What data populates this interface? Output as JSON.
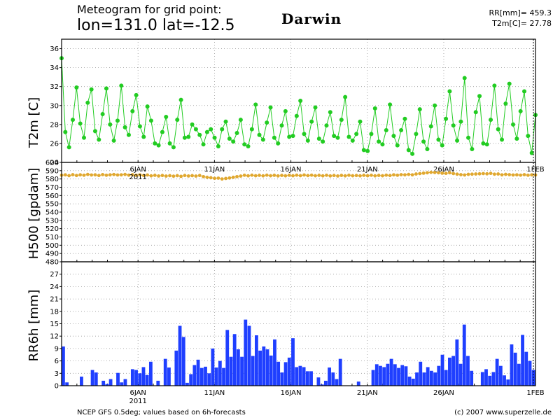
{
  "header": {
    "title_line1": "Meteogram for grid point:",
    "title_line2": "lon=131.0 lat=-12.5",
    "location": "Darwin",
    "rr_total": "RR[mm]= 459.3",
    "t2m_mean": "T2m[C]= 27.78"
  },
  "footer": {
    "source": "NCEP GFS 0.5deg; values based on 6h-forecasts",
    "credit": "(c) 2007 www.superzelle.de"
  },
  "colors": {
    "t2m": "#22cc22",
    "h500": "#e0a830",
    "rr6h": "#1f3fff",
    "grid": "#999999"
  },
  "chart_data": [
    {
      "type": "line",
      "ylabel": "T2m [C]",
      "x_axis": {
        "start": "2011-01-01 00:00",
        "end": "2011-02-01 00:00",
        "step": "6h",
        "tick_labels": [
          "6JAN",
          "11JAN",
          "16JAN",
          "21JAN",
          "26JAN",
          "1FEB"
        ],
        "tick_dates": [
          "2011-01-06",
          "2011-01-11",
          "2011-01-16",
          "2011-01-21",
          "2011-01-26",
          "2011-02-01"
        ]
      },
      "ylim": [
        24,
        37
      ],
      "yticks": [
        24,
        26,
        28,
        30,
        32,
        34,
        36
      ],
      "grid": true,
      "series": [
        {
          "values": [
            35.0,
            27.2,
            25.6,
            28.5,
            31.9,
            28.1,
            26.6,
            30.3,
            31.7,
            27.3,
            26.4,
            29.1,
            31.8,
            28.0,
            26.3,
            28.4,
            32.1,
            27.7,
            26.9,
            29.4,
            31.1,
            27.8,
            26.7,
            29.9,
            28.4,
            26.0,
            25.8,
            27.2,
            28.8,
            26.0,
            25.6,
            28.5,
            30.6,
            26.6,
            26.7,
            28.0,
            27.5,
            26.9,
            25.9,
            27.2,
            27.5,
            26.6,
            25.7,
            27.5,
            28.3,
            26.5,
            26.2,
            27.1,
            28.5,
            25.9,
            25.7,
            27.5,
            30.1,
            26.9,
            26.4,
            28.2,
            29.8,
            26.6,
            26.0,
            27.9,
            29.4,
            26.7,
            26.8,
            28.9,
            30.5,
            27.0,
            26.3,
            28.3,
            29.8,
            26.5,
            26.2,
            27.9,
            29.3,
            26.8,
            26.6,
            28.5,
            30.9,
            26.7,
            26.3,
            27.0,
            28.3,
            25.3,
            25.2,
            27.0,
            29.7,
            26.2,
            25.9,
            27.4,
            30.1,
            26.8,
            25.8,
            27.4,
            28.6,
            25.3,
            24.9,
            27.0,
            29.6,
            26.2,
            25.4,
            27.8,
            30.0,
            26.4,
            25.8,
            28.6,
            31.5,
            27.9,
            26.3,
            28.3,
            32.9,
            26.6,
            25.4,
            29.3,
            31.0,
            26.0,
            25.9,
            28.5,
            32.1,
            27.5,
            26.4,
            30.2,
            32.3,
            28.0,
            26.5,
            29.4,
            31.5,
            26.8,
            25.0,
            29.0
          ]
        }
      ]
    },
    {
      "type": "line",
      "ylabel": "H500 [gpdam]",
      "x_axis": {
        "start": "2011-01-01 00:00",
        "end": "2011-02-01 00:00",
        "step": "6h",
        "tick_labels": [
          "6JAN",
          "11JAN",
          "16JAN",
          "21JAN",
          "26JAN",
          "1FEB"
        ],
        "tick_dates": [
          "2011-01-06",
          "2011-01-11",
          "2011-01-16",
          "2011-01-21",
          "2011-01-26",
          "2011-02-01"
        ],
        "year_label": "2011"
      },
      "ylim": [
        480,
        600
      ],
      "yticks": [
        480,
        490,
        500,
        510,
        520,
        530,
        540,
        550,
        560,
        570,
        580,
        590,
        600
      ],
      "grid": true,
      "series": [
        {
          "values": [
            584.5,
            585.0,
            584.0,
            585.2,
            584.2,
            585.0,
            584.5,
            585.5,
            584.8,
            585.0,
            584.2,
            585.3,
            584.5,
            585.0,
            585.4,
            584.8,
            585.0,
            585.5,
            584.6,
            585.2,
            584.4,
            585.0,
            584.2,
            584.8,
            583.8,
            584.4,
            583.6,
            584.2,
            583.5,
            584.0,
            583.4,
            584.0,
            583.2,
            584.2,
            583.6,
            584.0,
            583.5,
            584.2,
            582.8,
            582.0,
            581.5,
            580.8,
            581.0,
            580.0,
            580.6,
            581.2,
            582.0,
            582.8,
            583.5,
            584.5,
            583.8,
            584.6,
            583.9,
            584.4,
            583.8,
            584.6,
            583.9,
            584.4,
            583.7,
            584.3,
            583.8,
            584.5,
            583.9,
            584.6,
            584.0,
            584.8,
            584.1,
            584.6,
            583.9,
            584.4,
            583.8,
            584.5,
            583.7,
            584.2,
            583.6,
            584.3,
            583.8,
            584.5,
            583.9,
            584.2,
            583.8,
            584.4,
            583.9,
            584.5,
            583.8,
            584.3,
            583.9,
            584.6,
            584.2,
            585.0,
            584.5,
            585.2,
            585.0,
            585.5,
            585.0,
            586.0,
            586.5,
            587.0,
            587.5,
            588.0,
            587.8,
            587.5,
            587.0,
            586.8,
            587.5,
            586.5,
            585.8,
            585.2,
            584.8,
            585.6,
            585.8,
            586.0,
            586.2,
            586.5,
            586.2,
            586.8,
            585.8,
            586.0,
            585.0,
            585.6,
            585.2,
            584.8,
            585.0,
            584.6,
            585.2,
            584.5,
            585.0,
            584.8
          ]
        }
      ]
    },
    {
      "type": "bar",
      "ylabel": "RR6h [mm]",
      "x_axis": {
        "start": "2011-01-01 00:00",
        "end": "2011-02-01 00:00",
        "step": "6h",
        "tick_labels": [
          "6JAN",
          "11JAN",
          "16JAN",
          "21JAN",
          "26JAN",
          "1FEB"
        ],
        "tick_dates": [
          "2011-01-06",
          "2011-01-11",
          "2011-01-16",
          "2011-01-21",
          "2011-01-26",
          "2011-02-01"
        ],
        "year_label": "2011"
      },
      "ylim": [
        0,
        30
      ],
      "yticks": [
        0,
        3,
        6,
        9,
        12,
        15,
        18,
        21,
        24,
        27
      ],
      "grid": true,
      "series": [
        {
          "values": [
            9.5,
            0.8,
            0,
            0,
            0,
            2.2,
            0,
            0,
            3.8,
            3.2,
            0,
            1.2,
            0.4,
            1.6,
            0,
            3.1,
            0.8,
            1.6,
            0,
            4.0,
            3.8,
            3.0,
            4.5,
            2.6,
            5.8,
            0,
            1.2,
            0,
            6.5,
            4.4,
            0,
            8.5,
            14.5,
            11.8,
            0.7,
            2.8,
            5.0,
            6.3,
            4.3,
            4.6,
            3.0,
            9.0,
            4.4,
            6.0,
            4.3,
            13.5,
            7.0,
            12.5,
            8.8,
            7.0,
            16.0,
            14.5,
            7.2,
            12.2,
            8.5,
            9.5,
            8.8,
            7.3,
            11.2,
            5.8,
            3.2,
            5.7,
            6.8,
            11.5,
            4.5,
            4.8,
            4.5,
            3.5,
            3.5,
            0,
            2.0,
            0.3,
            1.2,
            4.4,
            3.2,
            1.6,
            6.5,
            0,
            0,
            0,
            0,
            1.0,
            0,
            0,
            0,
            3.8,
            5.2,
            4.8,
            4.5,
            5.3,
            6.5,
            5.2,
            4.3,
            5.0,
            4.7,
            2.2,
            1.7,
            3.2,
            5.8,
            3.2,
            4.5,
            3.6,
            3.2,
            4.8,
            7.5,
            3.8,
            6.8,
            7.2,
            11.2,
            5.3,
            14.8,
            7.2,
            3.6,
            0,
            0,
            3.3,
            4.0,
            2.4,
            3.3,
            6.5,
            4.8,
            2.5,
            1.5,
            10.0,
            8.0,
            5.3,
            12.3,
            8.2,
            6.0,
            3.8
          ]
        }
      ]
    }
  ]
}
